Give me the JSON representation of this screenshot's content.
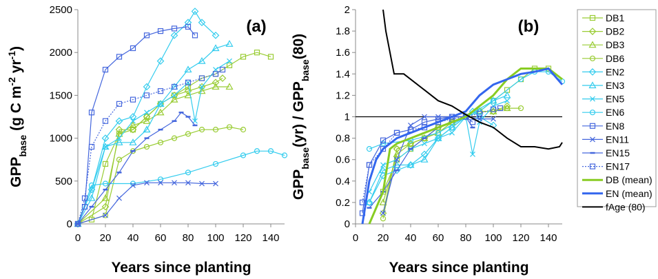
{
  "chart_data": [
    {
      "type": "line",
      "panel_label": "(a)",
      "xlabel": "Years since planting",
      "ylabel": [
        {
          "text": "GPP"
        },
        {
          "text": "base",
          "shift": "sub"
        },
        {
          "text": " (g C m"
        },
        {
          "text": "-2",
          "shift": "sup"
        },
        {
          "text": " yr"
        },
        {
          "text": "-1",
          "shift": "sup"
        },
        {
          "text": ")"
        }
      ],
      "xlim": [
        0,
        150
      ],
      "xticks": [
        0,
        20,
        40,
        60,
        80,
        100,
        120,
        140
      ],
      "ylim": [
        0,
        2500
      ],
      "yticks": [
        0,
        500,
        1000,
        1500,
        2000,
        2500
      ],
      "series": [
        {
          "color": "#99cc33",
          "marker": "square",
          "x": [
            0,
            10,
            20,
            30,
            40,
            50,
            60,
            70,
            80,
            90,
            100,
            110,
            120,
            130,
            140
          ],
          "values": [
            0,
            50,
            700,
            1050,
            1100,
            1250,
            1400,
            1500,
            1600,
            1700,
            1750,
            1850,
            1950,
            2000,
            1950
          ]
        },
        {
          "color": "#99cc33",
          "marker": "diamond",
          "x": [
            0,
            20,
            30,
            40,
            50,
            60,
            70,
            80,
            90,
            100,
            105
          ],
          "values": [
            0,
            200,
            1100,
            1100,
            1250,
            1400,
            1500,
            1550,
            1600,
            1650,
            1700
          ]
        },
        {
          "color": "#99cc33",
          "marker": "triangle",
          "x": [
            0,
            20,
            30,
            40,
            50,
            60,
            70,
            80,
            90,
            100,
            110
          ],
          "values": [
            0,
            300,
            1050,
            1150,
            1200,
            1300,
            1450,
            1500,
            1550,
            1600,
            1600
          ]
        },
        {
          "color": "#99cc33",
          "marker": "circle",
          "x": [
            0,
            20,
            30,
            40,
            50,
            60,
            70,
            80,
            90,
            100,
            110,
            120
          ],
          "values": [
            0,
            100,
            750,
            850,
            900,
            950,
            1000,
            1050,
            1100,
            1100,
            1130,
            1100
          ]
        },
        {
          "color": "#33ccee",
          "marker": "diamond",
          "x": [
            0,
            10,
            20,
            30,
            40,
            50,
            60,
            70,
            80,
            85,
            90,
            100
          ],
          "values": [
            0,
            400,
            1000,
            1200,
            1250,
            1600,
            1900,
            2200,
            2350,
            2480,
            2350,
            2200
          ]
        },
        {
          "color": "#33ccee",
          "marker": "triangle",
          "x": [
            0,
            10,
            20,
            30,
            40,
            50,
            60,
            70,
            80,
            90,
            100,
            110
          ],
          "values": [
            0,
            300,
            900,
            950,
            950,
            1100,
            1400,
            1600,
            1800,
            1900,
            2050,
            2100
          ]
        },
        {
          "color": "#33ccee",
          "marker": "x",
          "x": [
            0,
            10,
            20,
            30,
            40,
            50,
            60,
            70,
            80,
            85,
            90,
            100,
            110
          ],
          "values": [
            0,
            400,
            900,
            1000,
            1200,
            1300,
            1400,
            1500,
            1650,
            1200,
            1600,
            1800,
            1900
          ]
        },
        {
          "color": "#33ccee",
          "marker": "circle",
          "x": [
            0,
            10,
            20,
            40,
            60,
            80,
            100,
            120,
            130,
            140,
            150
          ],
          "values": [
            0,
            450,
            470,
            470,
            520,
            600,
            700,
            800,
            850,
            850,
            800
          ]
        },
        {
          "color": "#4466dd",
          "marker": "square",
          "x": [
            0,
            5,
            10,
            20,
            30,
            40,
            50,
            60,
            70,
            80,
            85
          ],
          "values": [
            0,
            200,
            1300,
            1800,
            1950,
            2050,
            2200,
            2250,
            2280,
            2300,
            2200
          ]
        },
        {
          "color": "#4466dd",
          "marker": "x",
          "x": [
            0,
            20,
            30,
            40,
            50,
            60,
            70,
            80,
            90,
            100
          ],
          "values": [
            0,
            100,
            300,
            450,
            480,
            480,
            480,
            480,
            470,
            470
          ]
        },
        {
          "color": "#4466dd",
          "marker": "dash",
          "x": [
            0,
            10,
            20,
            30,
            40,
            50,
            60,
            70,
            75,
            80,
            85
          ],
          "values": [
            0,
            200,
            400,
            600,
            850,
            1000,
            1100,
            1200,
            1300,
            1250,
            1150
          ]
        },
        {
          "color": "#4466dd",
          "marker": "square-open",
          "dotted": true,
          "x": [
            0,
            5,
            10,
            20,
            30,
            40,
            50,
            60,
            70,
            80,
            90,
            100,
            105
          ],
          "values": [
            0,
            300,
            900,
            1200,
            1400,
            1450,
            1500,
            1550,
            1600,
            1650,
            1700,
            1750,
            1800
          ]
        }
      ]
    },
    {
      "type": "line",
      "panel_label": "(b)",
      "xlabel": "Years since planting",
      "ylabel": [
        {
          "text": "GPP"
        },
        {
          "text": "base",
          "shift": "sub"
        },
        {
          "text": "(yr) / GPP"
        },
        {
          "text": "base",
          "shift": "sub"
        },
        {
          "text": "(80)"
        }
      ],
      "xlim": [
        0,
        150
      ],
      "xticks": [
        0,
        20,
        40,
        60,
        80,
        100,
        120,
        140
      ],
      "ylim": [
        0,
        2
      ],
      "yticks": [
        0,
        0.2,
        0.4,
        0.6,
        0.8,
        1,
        1.2,
        1.4,
        1.6,
        1.8,
        2
      ],
      "reference_line": 1,
      "legend": "right",
      "series": [
        {
          "name": "DB1",
          "color": "#99cc33",
          "marker": "square",
          "x": [
            20,
            30,
            40,
            50,
            60,
            70,
            80,
            90,
            100,
            110,
            120,
            130,
            140
          ],
          "values": [
            0.3,
            0.6,
            0.7,
            0.8,
            0.9,
            0.95,
            1.0,
            1.05,
            1.15,
            1.25,
            1.35,
            1.45,
            1.45
          ]
        },
        {
          "name": "DB2",
          "color": "#99cc33",
          "marker": "diamond",
          "x": [
            20,
            30,
            40,
            50,
            60,
            70,
            80,
            90,
            100,
            110
          ],
          "values": [
            0.1,
            0.7,
            0.75,
            0.8,
            0.9,
            0.95,
            1.0,
            1.05,
            1.05,
            1.1
          ]
        },
        {
          "name": "DB3",
          "color": "#99cc33",
          "marker": "triangle",
          "x": [
            20,
            30,
            40,
            50,
            60,
            70,
            80,
            90,
            100,
            110
          ],
          "values": [
            0.2,
            0.65,
            0.75,
            0.8,
            0.85,
            0.95,
            1.0,
            1.05,
            1.05,
            1.08
          ]
        },
        {
          "name": "DB6",
          "color": "#99cc33",
          "marker": "circle",
          "x": [
            20,
            30,
            40,
            50,
            60,
            70,
            80,
            90,
            100,
            110,
            120
          ],
          "values": [
            0.05,
            0.7,
            0.75,
            0.8,
            0.85,
            0.95,
            1.0,
            1.05,
            1.05,
            1.08,
            1.08
          ]
        },
        {
          "name": "EN2",
          "color": "#33ccee",
          "marker": "diamond",
          "x": [
            10,
            20,
            30,
            40,
            50,
            60,
            70,
            80,
            85,
            90,
            100
          ],
          "values": [
            0.2,
            0.45,
            0.5,
            0.55,
            0.65,
            0.8,
            0.9,
            1.0,
            1.05,
            1.0,
            0.92
          ]
        },
        {
          "name": "EN3",
          "color": "#33ccee",
          "marker": "triangle",
          "x": [
            10,
            20,
            30,
            40,
            50,
            60,
            70,
            80,
            90,
            100,
            110
          ],
          "values": [
            0.2,
            0.5,
            0.55,
            0.55,
            0.6,
            0.8,
            0.9,
            1.0,
            1.05,
            1.15,
            1.2
          ]
        },
        {
          "name": "EN5",
          "color": "#33ccee",
          "marker": "x",
          "x": [
            10,
            20,
            30,
            40,
            50,
            60,
            70,
            80,
            85,
            90,
            100,
            110
          ],
          "values": [
            0.3,
            0.55,
            0.6,
            0.7,
            0.75,
            0.8,
            0.85,
            1.0,
            0.65,
            0.95,
            1.1,
            1.15
          ]
        },
        {
          "name": "EN6",
          "color": "#33ccee",
          "marker": "circle",
          "x": [
            10,
            20,
            40,
            60,
            80,
            100,
            120,
            130,
            140,
            150
          ],
          "values": [
            0.7,
            0.75,
            0.78,
            0.85,
            1.0,
            1.15,
            1.35,
            1.42,
            1.42,
            1.33
          ]
        },
        {
          "name": "EN8",
          "color": "#4466dd",
          "marker": "square",
          "x": [
            5,
            10,
            20,
            30,
            40,
            50,
            60,
            70,
            80,
            85
          ],
          "values": [
            0.1,
            0.55,
            0.78,
            0.85,
            0.88,
            0.95,
            0.98,
            1.0,
            1.0,
            0.95
          ]
        },
        {
          "name": "EN11",
          "color": "#4466dd",
          "marker": "x",
          "x": [
            20,
            30,
            40,
            50,
            60,
            70,
            80,
            90,
            100
          ],
          "values": [
            0.1,
            0.6,
            0.92,
            1.0,
            1.0,
            1.0,
            1.0,
            0.98,
            0.98
          ]
        },
        {
          "name": "EN15",
          "color": "#4466dd",
          "marker": "dash",
          "x": [
            10,
            20,
            30,
            40,
            50,
            60,
            70,
            80,
            85
          ],
          "values": [
            0.15,
            0.3,
            0.5,
            0.7,
            0.8,
            0.9,
            0.95,
            1.0,
            0.9
          ]
        },
        {
          "name": "EN17",
          "color": "#4466dd",
          "marker": "square-open",
          "dotted": true,
          "x": [
            5,
            10,
            20,
            30,
            40,
            50,
            60,
            70,
            80,
            90,
            100,
            105
          ],
          "values": [
            0.2,
            0.55,
            0.7,
            0.85,
            0.88,
            0.9,
            0.95,
            0.98,
            1.0,
            1.03,
            1.07,
            1.08
          ]
        },
        {
          "name": "DB (mean)",
          "color": "#88cc22",
          "marker": "none",
          "width": 3,
          "x": [
            10,
            20,
            25,
            30,
            40,
            50,
            60,
            70,
            80,
            90,
            100,
            110,
            120,
            130,
            140,
            150
          ],
          "values": [
            0,
            0.3,
            0.7,
            0.75,
            0.8,
            0.85,
            0.9,
            0.95,
            1.0,
            1.1,
            1.2,
            1.35,
            1.45,
            1.45,
            1.45,
            1.35
          ]
        },
        {
          "name": "EN (mean)",
          "color": "#3366ee",
          "marker": "none",
          "width": 3,
          "x": [
            5,
            10,
            15,
            20,
            30,
            40,
            50,
            60,
            70,
            80,
            90,
            100,
            110,
            120,
            130,
            140,
            150
          ],
          "values": [
            0,
            0.4,
            0.6,
            0.7,
            0.8,
            0.85,
            0.9,
            0.95,
            1.0,
            1.05,
            1.2,
            1.3,
            1.35,
            1.4,
            1.42,
            1.45,
            1.3
          ]
        },
        {
          "name": "fAge (80)",
          "color": "#000000",
          "marker": "none",
          "width": 2,
          "x": [
            20,
            22,
            25,
            28,
            35,
            40,
            50,
            60,
            70,
            80,
            90,
            100,
            110,
            120,
            130,
            140,
            148,
            150
          ],
          "values": [
            2.0,
            1.8,
            1.6,
            1.4,
            1.4,
            1.35,
            1.25,
            1.15,
            1.1,
            1.02,
            0.95,
            0.9,
            0.8,
            0.72,
            0.72,
            0.7,
            0.72,
            0.76
          ]
        }
      ]
    }
  ]
}
